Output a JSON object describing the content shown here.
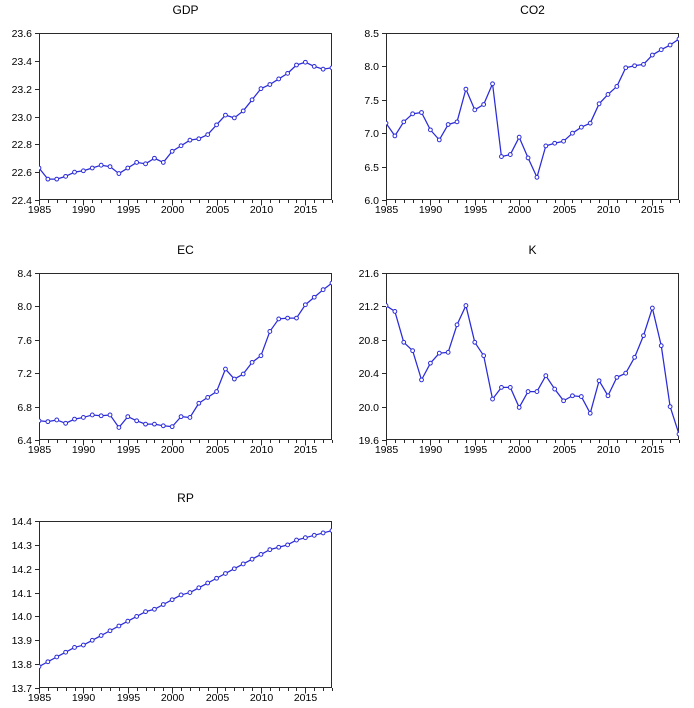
{
  "figure": {
    "background": "#ffffff",
    "line_color": "#2b2bd9",
    "marker_fill": "#ffffff",
    "frame_color": "#2a2a2a",
    "text_color": "#000000",
    "marker": "open-circle",
    "legend": "none",
    "grid": false
  },
  "chart_data": [
    {
      "type": "line",
      "title": "GDP",
      "x_start": 1985,
      "x_end": 2018,
      "x_tick_interval": 1,
      "x_label_years": [
        1985,
        1990,
        1995,
        2000,
        2005,
        2010,
        2015
      ],
      "ylim": [
        22.4,
        23.6
      ],
      "ytick_step": 0.2,
      "ytick_decimals": 1,
      "values": [
        22.63,
        22.55,
        22.55,
        22.57,
        22.6,
        22.61,
        22.63,
        22.65,
        22.64,
        22.59,
        22.63,
        22.67,
        22.66,
        22.7,
        22.67,
        22.75,
        22.79,
        22.83,
        22.84,
        22.87,
        22.94,
        23.01,
        22.99,
        23.04,
        23.12,
        23.2,
        23.23,
        23.27,
        23.31,
        23.37,
        23.39,
        23.36,
        23.34,
        23.35
      ]
    },
    {
      "type": "line",
      "title": "CO2",
      "x_start": 1985,
      "x_end": 2018,
      "x_tick_interval": 1,
      "x_label_years": [
        1985,
        1990,
        1995,
        2000,
        2005,
        2010,
        2015
      ],
      "ylim": [
        6.0,
        8.5
      ],
      "ytick_step": 0.5,
      "ytick_decimals": 1,
      "values": [
        7.15,
        6.96,
        7.17,
        7.29,
        7.31,
        7.05,
        6.9,
        7.13,
        7.17,
        7.66,
        7.35,
        7.43,
        7.74,
        6.65,
        6.68,
        6.94,
        6.63,
        6.34,
        6.81,
        6.85,
        6.88,
        7.0,
        7.09,
        7.15,
        7.44,
        7.58,
        7.7,
        7.98,
        8.01,
        8.03,
        8.17,
        8.25,
        8.32,
        8.41
      ]
    },
    {
      "type": "line",
      "title": "EC",
      "x_start": 1985,
      "x_end": 2018,
      "x_tick_interval": 1,
      "x_label_years": [
        1985,
        1990,
        1995,
        2000,
        2005,
        2010,
        2015
      ],
      "ylim": [
        6.4,
        8.4
      ],
      "ytick_step": 0.4,
      "ytick_decimals": 1,
      "values": [
        6.63,
        6.62,
        6.64,
        6.6,
        6.65,
        6.67,
        6.7,
        6.69,
        6.7,
        6.55,
        6.68,
        6.63,
        6.59,
        6.59,
        6.57,
        6.56,
        6.68,
        6.67,
        6.84,
        6.91,
        6.98,
        7.25,
        7.13,
        7.19,
        7.33,
        7.41,
        7.7,
        7.85,
        7.86,
        7.86,
        8.02,
        8.11,
        8.2,
        8.28
      ]
    },
    {
      "type": "line",
      "title": "K",
      "x_start": 1985,
      "x_end": 2018,
      "x_tick_interval": 1,
      "x_label_years": [
        1985,
        1990,
        1995,
        2000,
        2005,
        2010,
        2015
      ],
      "ylim": [
        19.6,
        21.6
      ],
      "ytick_step": 0.4,
      "ytick_decimals": 1,
      "values": [
        21.21,
        21.14,
        20.77,
        20.67,
        20.32,
        20.52,
        20.64,
        20.65,
        20.98,
        21.21,
        20.77,
        20.61,
        20.09,
        20.23,
        20.23,
        19.99,
        20.18,
        20.18,
        20.37,
        20.21,
        20.07,
        20.13,
        20.12,
        19.92,
        20.31,
        20.13,
        20.35,
        20.4,
        20.59,
        20.85,
        21.18,
        20.73,
        20.0,
        19.67
      ]
    },
    {
      "type": "line",
      "title": "RP",
      "x_start": 1985,
      "x_end": 2018,
      "x_tick_interval": 1,
      "x_label_years": [
        1985,
        1990,
        1995,
        2000,
        2005,
        2010,
        2015
      ],
      "ylim": [
        13.7,
        14.4
      ],
      "ytick_step": 0.1,
      "ytick_decimals": 1,
      "values": [
        13.79,
        13.81,
        13.83,
        13.85,
        13.87,
        13.88,
        13.9,
        13.92,
        13.94,
        13.96,
        13.98,
        14.0,
        14.02,
        14.03,
        14.05,
        14.07,
        14.09,
        14.1,
        14.12,
        14.14,
        14.16,
        14.18,
        14.2,
        14.22,
        14.24,
        14.26,
        14.28,
        14.29,
        14.3,
        14.32,
        14.33,
        14.34,
        14.35,
        14.36
      ]
    }
  ]
}
